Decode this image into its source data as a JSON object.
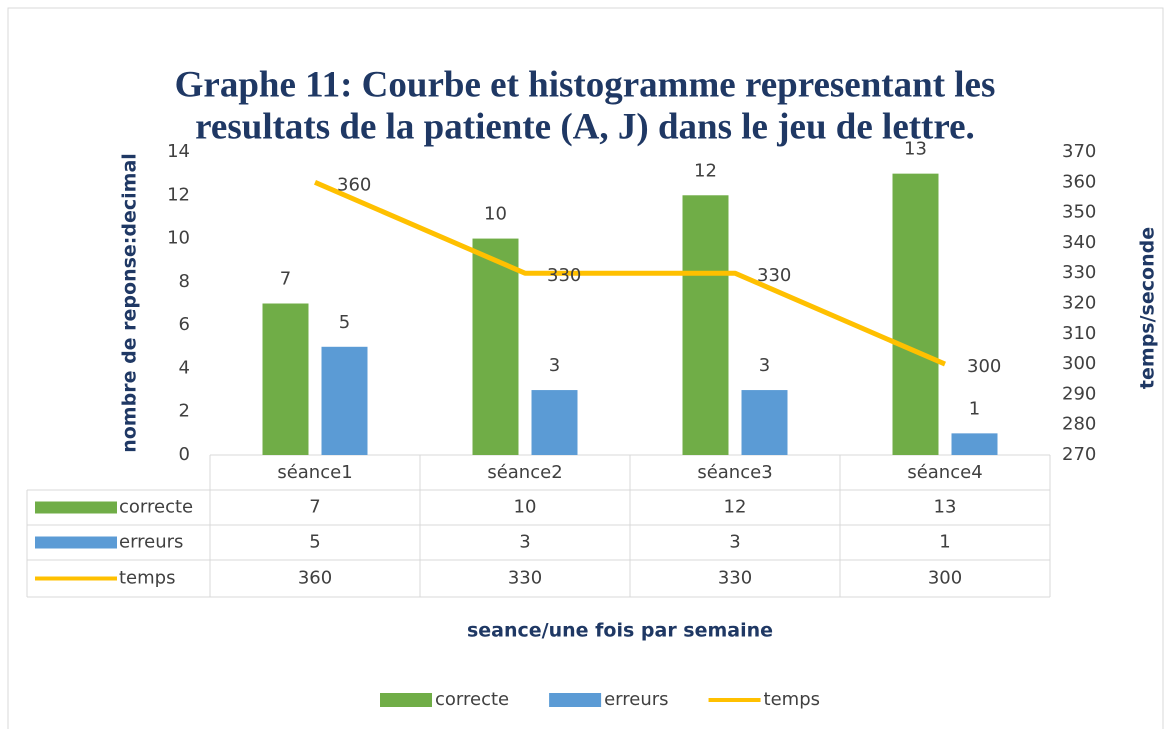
{
  "chart_data": {
    "type": "bar-line",
    "title": [
      "Graphe 11: Courbe et histogramme representant les",
      "resultats de la patiente (A, J) dans le jeu de lettre."
    ],
    "x_label": "seance/une fois par semaine",
    "y_label": "nombre de reponse:decimal",
    "y2_label": "temps/seconde",
    "categories": [
      "séance1",
      "séance2",
      "séance3",
      "séance4"
    ],
    "series": [
      {
        "name": "correcte",
        "type": "bar",
        "color": "#70ad47",
        "values": [
          7,
          10,
          12,
          13
        ]
      },
      {
        "name": "erreurs",
        "type": "bar",
        "color": "#5b9bd5",
        "values": [
          5,
          3,
          3,
          1
        ]
      },
      {
        "name": "temps",
        "type": "line",
        "axis": "y2",
        "color": "#ffc000",
        "values": [
          360,
          330,
          330,
          300
        ]
      }
    ],
    "ylim": [
      0,
      14
    ],
    "yticks": [
      0,
      2,
      4,
      6,
      8,
      10,
      12,
      14
    ],
    "y2lim": [
      270,
      370
    ],
    "y2ticks": [
      270,
      280,
      290,
      300,
      310,
      320,
      330,
      340,
      350,
      360,
      370
    ],
    "data_table": true,
    "legend": "bottom"
  }
}
